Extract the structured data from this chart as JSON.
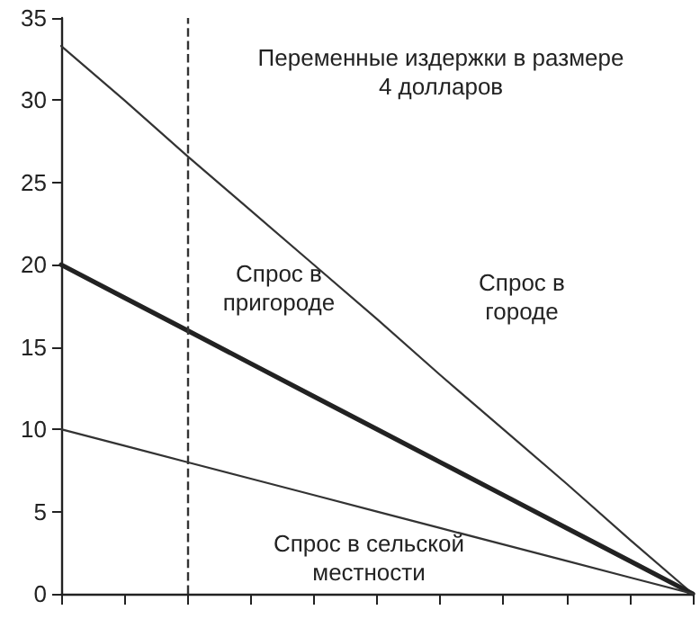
{
  "chart_data": {
    "type": "line",
    "categories": [
      null,
      null,
      null,
      null,
      null,
      null,
      null,
      null,
      null,
      null,
      null
    ],
    "series": [
      {
        "color": "#333333",
        "values": [
          33.3,
          30,
          26.6,
          23.3,
          20,
          16.7,
          13.3,
          10,
          6.7,
          3.3,
          0
        ]
      },
      {
        "color": "#222222",
        "values": [
          20,
          18,
          16,
          14,
          12,
          10,
          8,
          6,
          4,
          2,
          0
        ]
      },
      {
        "color": "#333333",
        "values": [
          10,
          9,
          8,
          7,
          6,
          5,
          4,
          3,
          2,
          1,
          0
        ]
      }
    ],
    "ylim": [
      0,
      35
    ],
    "yticks": [
      0,
      5,
      10,
      15,
      20,
      25,
      30,
      35
    ],
    "tick_labels": "y",
    "grid": false,
    "marker": "none",
    "line_style": "solid",
    "annotations": [
      "Переменные издержки в размере\n4 долларов",
      "Спрос в\nпригороде",
      "Спрос в\nгороде",
      "Спрос в сельской\nместности"
    ]
  }
}
